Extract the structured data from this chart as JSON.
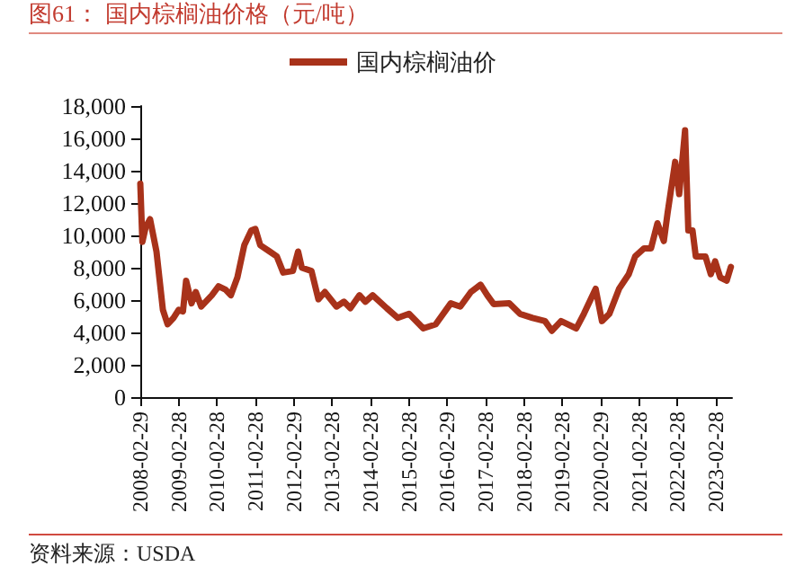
{
  "chart_data": {
    "type": "line",
    "title": "图61：  国内棕榈油价格（元/吨）",
    "annotations": [
      "资料来源：USDA"
    ],
    "x": [
      "2008-02-29",
      "2008-03-20",
      "2008-04-20",
      "2008-06-01",
      "2008-08-01",
      "2008-10-01",
      "2008-11-15",
      "2009-01-10",
      "2009-02-28",
      "2009-04-10",
      "2009-05-10",
      "2009-07-01",
      "2009-08-10",
      "2009-10-01",
      "2010-01-10",
      "2010-03-15",
      "2010-05-20",
      "2010-07-10",
      "2010-09-10",
      "2010-11-15",
      "2011-01-20",
      "2011-02-28",
      "2011-04-15",
      "2011-07-15",
      "2011-09-20",
      "2011-11-20",
      "2012-02-20",
      "2012-04-10",
      "2012-05-15",
      "2012-08-15",
      "2012-10-20",
      "2012-12-20",
      "2013-04-10",
      "2013-06-20",
      "2013-08-20",
      "2013-11-15",
      "2014-01-10",
      "2014-03-20",
      "2014-08-01",
      "2014-11-15",
      "2015-03-01",
      "2015-07-15",
      "2015-11-10",
      "2016-04-01",
      "2016-07-01",
      "2016-10-10",
      "2017-01-10",
      "2017-03-15",
      "2017-05-15",
      "2017-10-10",
      "2018-01-20",
      "2018-05-20",
      "2018-09-15",
      "2018-11-20",
      "2019-02-15",
      "2019-07-10",
      "2019-09-20",
      "2020-01-10",
      "2020-03-10",
      "2020-05-20",
      "2020-08-20",
      "2020-11-20",
      "2021-01-20",
      "2021-04-15",
      "2021-06-20",
      "2021-08-20",
      "2021-10-20",
      "2021-11-25",
      "2022-02-05",
      "2022-03-15",
      "2022-05-10",
      "2022-06-10",
      "2022-07-20",
      "2022-08-20",
      "2022-11-20",
      "2023-01-10",
      "2023-02-20",
      "2023-04-10",
      "2023-06-10",
      "2023-07-20"
    ],
    "series": [
      {
        "name": "国内棕榈油价",
        "color": "#a8321a",
        "values": [
          13200,
          9600,
          10500,
          11000,
          9000,
          5400,
          4500,
          4900,
          5400,
          5300,
          7200,
          5800,
          6500,
          5600,
          6300,
          6850,
          6650,
          6300,
          7400,
          9400,
          10300,
          10400,
          9400,
          9000,
          8700,
          7700,
          7800,
          9000,
          8000,
          7800,
          6050,
          6500,
          5600,
          5900,
          5500,
          6300,
          5900,
          6300,
          5500,
          4900,
          5150,
          4250,
          4500,
          5800,
          5600,
          6500,
          6950,
          6300,
          5750,
          5800,
          5150,
          4900,
          4700,
          4100,
          4700,
          4250,
          5150,
          6700,
          4700,
          5150,
          6700,
          7600,
          8700,
          9200,
          9200,
          10750,
          9650,
          11400,
          14550,
          12550,
          16500,
          10300,
          10300,
          8700,
          8700,
          7600,
          8400,
          7400,
          7200,
          8050
        ]
      }
    ],
    "xlim": [
      "2008-02-29",
      "2023-07-31"
    ],
    "xticks": [
      "2008-02-29",
      "2009-02-28",
      "2010-02-28",
      "2011-02-28",
      "2012-02-29",
      "2013-02-28",
      "2014-02-28",
      "2015-02-28",
      "2016-02-29",
      "2017-02-28",
      "2018-02-28",
      "2019-02-28",
      "2020-02-29",
      "2021-02-28",
      "2022-02-28",
      "2023-02-28"
    ],
    "ylim": [
      0,
      18000
    ],
    "yticks": [
      0,
      {
        "value": 2000,
        "label": "2,000"
      },
      {
        "value": 4000,
        "label": "4,000"
      },
      {
        "value": 6000,
        "label": "6,000"
      },
      {
        "value": 8000,
        "label": "8,000"
      },
      {
        "value": 10000,
        "label": "10,000"
      },
      {
        "value": 12000,
        "label": "12,000"
      },
      {
        "value": 14000,
        "label": "14,000"
      },
      {
        "value": 16000,
        "label": "16,000"
      },
      {
        "value": 18000,
        "label": "18,000"
      }
    ],
    "grid": false,
    "legend": "top",
    "marker": "none",
    "line_style": "solid"
  }
}
